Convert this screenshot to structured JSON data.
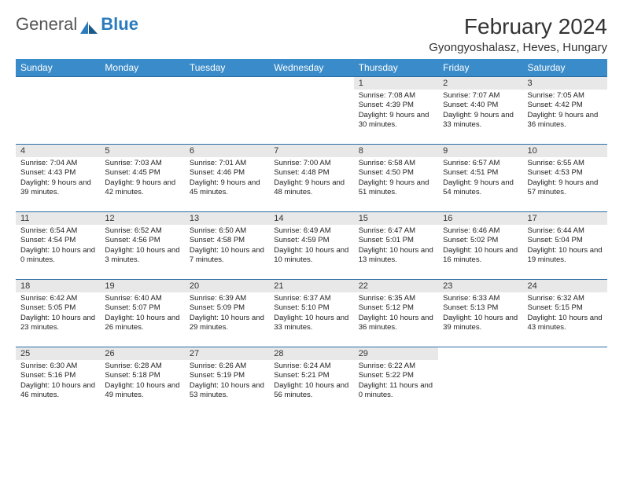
{
  "logo": {
    "text1": "General",
    "text2": "Blue"
  },
  "title": "February 2024",
  "location": "Gyongyoshalasz, Heves, Hungary",
  "colors": {
    "header_bg": "#3a8bc9",
    "daynum_bg": "#e8e8e8",
    "row_border": "#2b6ca3",
    "logo_blue": "#2b7bbd"
  },
  "weekdays": [
    "Sunday",
    "Monday",
    "Tuesday",
    "Wednesday",
    "Thursday",
    "Friday",
    "Saturday"
  ],
  "weeks": [
    [
      null,
      null,
      null,
      null,
      {
        "d": "1",
        "sr": "7:08 AM",
        "ss": "4:39 PM",
        "dl": "9 hours and 30 minutes."
      },
      {
        "d": "2",
        "sr": "7:07 AM",
        "ss": "4:40 PM",
        "dl": "9 hours and 33 minutes."
      },
      {
        "d": "3",
        "sr": "7:05 AM",
        "ss": "4:42 PM",
        "dl": "9 hours and 36 minutes."
      }
    ],
    [
      {
        "d": "4",
        "sr": "7:04 AM",
        "ss": "4:43 PM",
        "dl": "9 hours and 39 minutes."
      },
      {
        "d": "5",
        "sr": "7:03 AM",
        "ss": "4:45 PM",
        "dl": "9 hours and 42 minutes."
      },
      {
        "d": "6",
        "sr": "7:01 AM",
        "ss": "4:46 PM",
        "dl": "9 hours and 45 minutes."
      },
      {
        "d": "7",
        "sr": "7:00 AM",
        "ss": "4:48 PM",
        "dl": "9 hours and 48 minutes."
      },
      {
        "d": "8",
        "sr": "6:58 AM",
        "ss": "4:50 PM",
        "dl": "9 hours and 51 minutes."
      },
      {
        "d": "9",
        "sr": "6:57 AM",
        "ss": "4:51 PM",
        "dl": "9 hours and 54 minutes."
      },
      {
        "d": "10",
        "sr": "6:55 AM",
        "ss": "4:53 PM",
        "dl": "9 hours and 57 minutes."
      }
    ],
    [
      {
        "d": "11",
        "sr": "6:54 AM",
        "ss": "4:54 PM",
        "dl": "10 hours and 0 minutes."
      },
      {
        "d": "12",
        "sr": "6:52 AM",
        "ss": "4:56 PM",
        "dl": "10 hours and 3 minutes."
      },
      {
        "d": "13",
        "sr": "6:50 AM",
        "ss": "4:58 PM",
        "dl": "10 hours and 7 minutes."
      },
      {
        "d": "14",
        "sr": "6:49 AM",
        "ss": "4:59 PM",
        "dl": "10 hours and 10 minutes."
      },
      {
        "d": "15",
        "sr": "6:47 AM",
        "ss": "5:01 PM",
        "dl": "10 hours and 13 minutes."
      },
      {
        "d": "16",
        "sr": "6:46 AM",
        "ss": "5:02 PM",
        "dl": "10 hours and 16 minutes."
      },
      {
        "d": "17",
        "sr": "6:44 AM",
        "ss": "5:04 PM",
        "dl": "10 hours and 19 minutes."
      }
    ],
    [
      {
        "d": "18",
        "sr": "6:42 AM",
        "ss": "5:05 PM",
        "dl": "10 hours and 23 minutes."
      },
      {
        "d": "19",
        "sr": "6:40 AM",
        "ss": "5:07 PM",
        "dl": "10 hours and 26 minutes."
      },
      {
        "d": "20",
        "sr": "6:39 AM",
        "ss": "5:09 PM",
        "dl": "10 hours and 29 minutes."
      },
      {
        "d": "21",
        "sr": "6:37 AM",
        "ss": "5:10 PM",
        "dl": "10 hours and 33 minutes."
      },
      {
        "d": "22",
        "sr": "6:35 AM",
        "ss": "5:12 PM",
        "dl": "10 hours and 36 minutes."
      },
      {
        "d": "23",
        "sr": "6:33 AM",
        "ss": "5:13 PM",
        "dl": "10 hours and 39 minutes."
      },
      {
        "d": "24",
        "sr": "6:32 AM",
        "ss": "5:15 PM",
        "dl": "10 hours and 43 minutes."
      }
    ],
    [
      {
        "d": "25",
        "sr": "6:30 AM",
        "ss": "5:16 PM",
        "dl": "10 hours and 46 minutes."
      },
      {
        "d": "26",
        "sr": "6:28 AM",
        "ss": "5:18 PM",
        "dl": "10 hours and 49 minutes."
      },
      {
        "d": "27",
        "sr": "6:26 AM",
        "ss": "5:19 PM",
        "dl": "10 hours and 53 minutes."
      },
      {
        "d": "28",
        "sr": "6:24 AM",
        "ss": "5:21 PM",
        "dl": "10 hours and 56 minutes."
      },
      {
        "d": "29",
        "sr": "6:22 AM",
        "ss": "5:22 PM",
        "dl": "11 hours and 0 minutes."
      },
      null,
      null
    ]
  ],
  "labels": {
    "sunrise": "Sunrise:",
    "sunset": "Sunset:",
    "daylight": "Daylight:"
  }
}
